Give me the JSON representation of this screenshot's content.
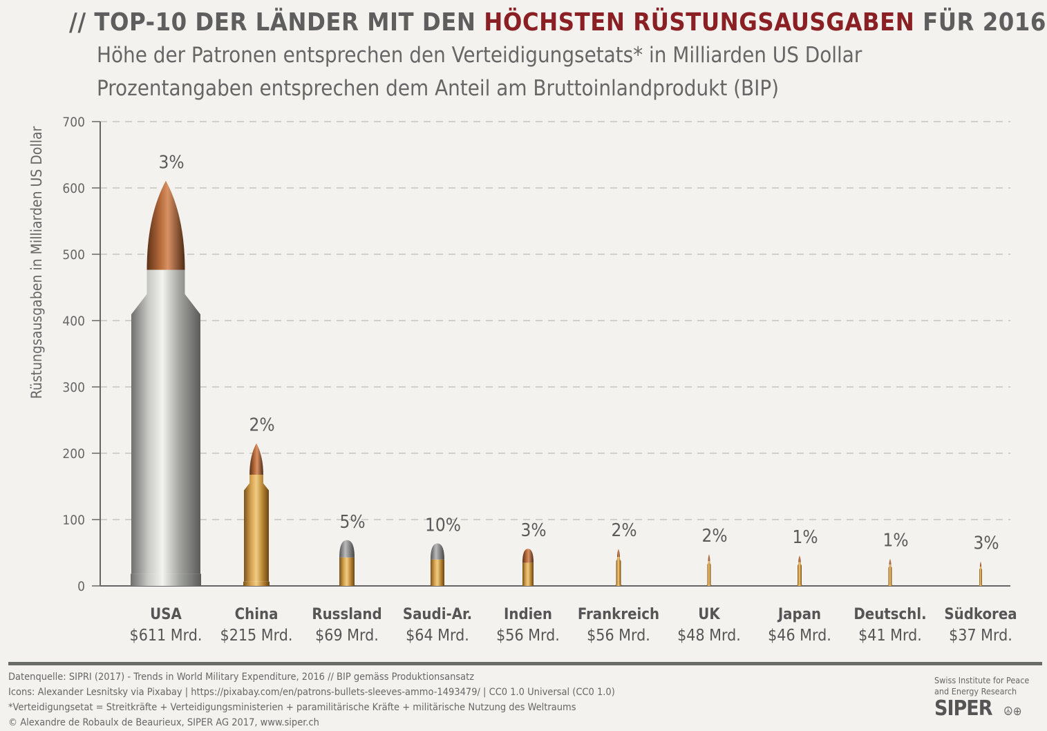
{
  "header": {
    "title_prefix": "// TOP-10 DER LÄNDER MIT DEN ",
    "title_highlight": "HÖCHSTEN RÜSTUNGSAUSGABEN",
    "title_suffix": " FÜR 2016",
    "subtitle_1": "Höhe der Patronen entsprechen den Verteidigungsetats* in Milliarden US Dollar",
    "subtitle_2": "Prozentangaben entsprechen dem Anteil am Bruttoinlandprodukt (BIP)"
  },
  "chart_data": {
    "type": "bar",
    "title": "TOP-10 der Länder mit den höchsten Rüstungsausgaben für 2016",
    "ylabel": "Rüstungsausgaben in Milliarden US Dollar",
    "xlabel": "",
    "ylim": [
      0,
      700
    ],
    "yticks": [
      "0",
      "100",
      "200",
      "300",
      "400",
      "500",
      "600",
      "700"
    ],
    "grid": true,
    "categories": [
      "USA",
      "China",
      "Russland",
      "Saudi-Ar.",
      "Indien",
      "Frankreich",
      "UK",
      "Japan",
      "Deutschl.",
      "Südkorea"
    ],
    "values": [
      611,
      215,
      69,
      64,
      56,
      56,
      48,
      46,
      41,
      37
    ],
    "value_labels": [
      "$611 Mrd.",
      "$215 Mrd.",
      "$69 Mrd.",
      "$64 Mrd.",
      "$56 Mrd.",
      "$56 Mrd.",
      "$48 Mrd.",
      "$46 Mrd.",
      "$41 Mrd.",
      "$37 Mrd."
    ],
    "gdp_share_labels": [
      "3%",
      "2%",
      "5%",
      "10%",
      "3%",
      "2%",
      "2%",
      "1%",
      "1%",
      "3%"
    ],
    "gdp_share": [
      3,
      2,
      5,
      10,
      3,
      2,
      2,
      1,
      1,
      3
    ]
  },
  "footer": {
    "source": "Datenquelle: SIPRI (2017) - Trends in World Military Expenditure, 2016 // BIP gemäss Produktionsansatz",
    "icons": "Icons: Alexander Lesnitsky via Pixabay | https://pixabay.com/en/patrons-bullets-sleeves-ammo-1493479/ | CC0 1.0 Universal (CC0 1.0)",
    "note": "*Verteidigungsetat = Streitkräfte + Verteidigungsministerien + paramilitärische Kräfte + militärische Nutzung des Weltraums",
    "copyright": "© Alexandre de Robaulx de Beaurieux, SIPER AG 2017, www.siper.ch",
    "org_line_1": "Swiss Institute for Peace",
    "org_line_2": "and Energy Research",
    "logo": "SIPER",
    "logo_icons": "☮⊕"
  }
}
